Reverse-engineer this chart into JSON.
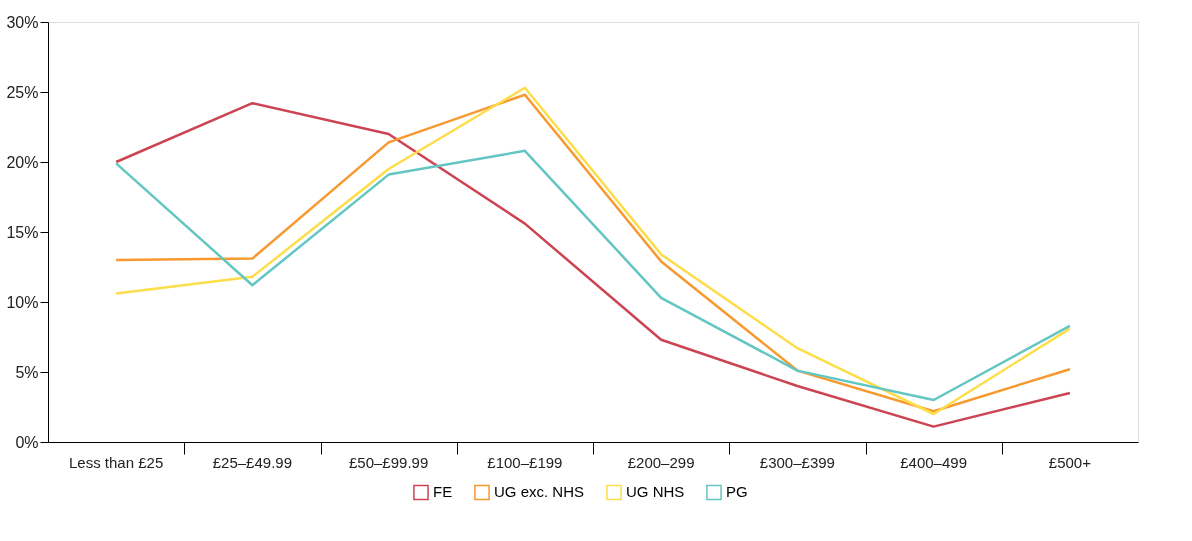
{
  "chart_data": {
    "type": "line",
    "categories": [
      "Less than £25",
      "£25–£49.99",
      "£50–£99.99",
      "£100–£199",
      "£200–299",
      "£300–£399",
      "£400–499",
      "£500+"
    ],
    "series": [
      {
        "name": "FE",
        "color": "#cc4451",
        "values": [
          20.0,
          24.2,
          22.0,
          15.6,
          7.3,
          4.0,
          1.1,
          3.5
        ]
      },
      {
        "name": "UG exc. NHS",
        "color": "#f7992e",
        "values": [
          13.0,
          13.1,
          21.4,
          24.8,
          12.9,
          5.1,
          2.2,
          5.2
        ]
      },
      {
        "name": "UG NHS",
        "color": "#fddd4a",
        "values": [
          10.6,
          11.8,
          19.5,
          25.3,
          13.4,
          6.7,
          2.0,
          8.1
        ]
      },
      {
        "name": "PG",
        "color": "#63c6c2",
        "values": [
          19.9,
          11.2,
          19.1,
          20.8,
          10.3,
          5.1,
          3.0,
          8.3
        ]
      }
    ],
    "ylim": [
      0,
      30
    ],
    "yticks": [
      {
        "value": 0,
        "label": "0%"
      },
      {
        "value": 5,
        "label": "5%"
      },
      {
        "value": 10,
        "label": "10%"
      },
      {
        "value": 15,
        "label": "15%"
      },
      {
        "value": 20,
        "label": "20%"
      },
      {
        "value": 25,
        "label": "25%"
      },
      {
        "value": 30,
        "label": "30%"
      }
    ],
    "grid": false,
    "legend": "bottom",
    "marker": "none",
    "line_style": "solid"
  }
}
